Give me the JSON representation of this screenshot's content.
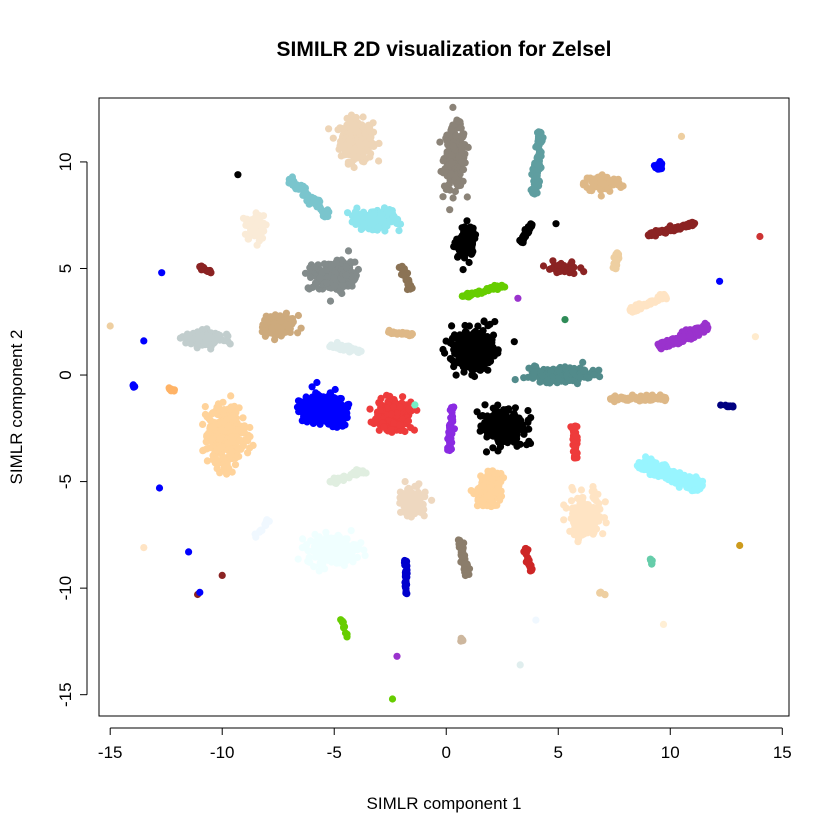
{
  "chart_data": {
    "type": "scatter",
    "title": "SIMILR 2D visualization for Zelsel",
    "xlabel": "SIMLR component 1",
    "ylabel": "SIMLR component 2",
    "xlim": [
      -15.5,
      15.3
    ],
    "ylim": [
      -16.0,
      13.0
    ],
    "xticks": [
      -15,
      -10,
      -5,
      0,
      5,
      10,
      15
    ],
    "yticks": [
      -15,
      -10,
      -5,
      0,
      5,
      10
    ],
    "grid": false,
    "legend": "none",
    "series": [
      {
        "color": "#EED5B7",
        "shape": "blob",
        "center": [
          -4.0,
          11.0
        ],
        "spread": [
          0.6,
          0.8
        ],
        "n": 260
      },
      {
        "color": "#8B8378",
        "shape": "blob",
        "center": [
          0.4,
          10.2
        ],
        "spread": [
          0.4,
          1.2
        ],
        "n": 240
      },
      {
        "color": "#5F9EA0",
        "shape": "line",
        "start": [
          4.2,
          11.4
        ],
        "end": [
          3.9,
          8.5
        ],
        "width": 0.15,
        "n": 120
      },
      {
        "color": "#DEB887",
        "shape": "blob",
        "center": [
          7.0,
          9.0
        ],
        "spread": [
          0.7,
          0.35
        ],
        "n": 90
      },
      {
        "color": "#0000FF",
        "shape": "blob",
        "center": [
          9.5,
          9.8
        ],
        "spread": [
          0.12,
          0.2
        ],
        "n": 20
      },
      {
        "color": "#EECFA1",
        "shape": "point",
        "center": [
          10.5,
          11.2
        ]
      },
      {
        "color": "#000000",
        "shape": "point",
        "center": [
          -9.3,
          9.4
        ]
      },
      {
        "color": "#7AC5CD",
        "shape": "line",
        "start": [
          -7.0,
          9.2
        ],
        "end": [
          -5.2,
          7.5
        ],
        "width": 0.15,
        "n": 90
      },
      {
        "color": "#8EE5EE",
        "shape": "blob",
        "center": [
          -3.2,
          7.3
        ],
        "spread": [
          0.9,
          0.4
        ],
        "n": 150
      },
      {
        "color": "#FAEBD7",
        "shape": "blob",
        "center": [
          -8.5,
          6.9
        ],
        "spread": [
          0.35,
          0.45
        ],
        "n": 70
      },
      {
        "color": "#000000",
        "shape": "blob",
        "center": [
          0.9,
          6.3
        ],
        "spread": [
          0.3,
          0.6
        ],
        "n": 110
      },
      {
        "color": "#000000",
        "shape": "line",
        "start": [
          3.3,
          6.2
        ],
        "end": [
          3.8,
          7.1
        ],
        "width": 0.1,
        "n": 40
      },
      {
        "color": "#000000",
        "shape": "point",
        "center": [
          4.9,
          7.1
        ]
      },
      {
        "color": "#8B2323",
        "shape": "line",
        "start": [
          9.0,
          6.6
        ],
        "end": [
          11.2,
          7.1
        ],
        "width": 0.12,
        "n": 80
      },
      {
        "color": "#CD3333",
        "shape": "point",
        "center": [
          14.0,
          6.5
        ]
      },
      {
        "color": "#8B2323",
        "shape": "blob",
        "center": [
          5.2,
          5.0
        ],
        "spread": [
          0.6,
          0.22
        ],
        "n": 50
      },
      {
        "color": "#EECFA1",
        "shape": "line",
        "start": [
          7.5,
          5.0
        ],
        "end": [
          7.7,
          5.8
        ],
        "width": 0.1,
        "n": 30
      },
      {
        "color": "#8B2323",
        "shape": "line",
        "start": [
          -11.0,
          5.1
        ],
        "end": [
          -10.5,
          4.8
        ],
        "width": 0.08,
        "n": 25
      },
      {
        "color": "#0000FF",
        "shape": "point",
        "center": [
          -12.7,
          4.8
        ]
      },
      {
        "color": "#838B8B",
        "shape": "blob",
        "center": [
          -5.0,
          4.6
        ],
        "spread": [
          0.8,
          0.6
        ],
        "n": 200
      },
      {
        "color": "#8B7355",
        "shape": "line",
        "start": [
          -2.0,
          5.1
        ],
        "end": [
          -1.6,
          4.0
        ],
        "width": 0.1,
        "n": 40
      },
      {
        "color": "#66CD00",
        "shape": "line",
        "start": [
          0.7,
          3.7
        ],
        "end": [
          2.6,
          4.2
        ],
        "width": 0.1,
        "n": 50
      },
      {
        "color": "#9A32CD",
        "shape": "point",
        "center": [
          3.2,
          3.6
        ]
      },
      {
        "color": "#0000FF",
        "shape": "point",
        "center": [
          12.2,
          4.4
        ]
      },
      {
        "color": "#FFE4C4",
        "shape": "line",
        "start": [
          8.2,
          3.0
        ],
        "end": [
          9.8,
          3.7
        ],
        "width": 0.15,
        "n": 60
      },
      {
        "color": "#2E8B57",
        "shape": "point",
        "center": [
          5.3,
          2.6
        ]
      },
      {
        "color": "#CDAA7D",
        "shape": "blob",
        "center": [
          -7.5,
          2.3
        ],
        "spread": [
          0.6,
          0.4
        ],
        "n": 120
      },
      {
        "color": "#C1CDCD",
        "shape": "blob",
        "center": [
          -10.8,
          1.7
        ],
        "spread": [
          0.7,
          0.3
        ],
        "n": 120
      },
      {
        "color": "#EECFA1",
        "shape": "point",
        "center": [
          -15.0,
          2.3
        ]
      },
      {
        "color": "#0000FF",
        "shape": "point",
        "center": [
          -13.5,
          1.6
        ]
      },
      {
        "color": "#E0EEEE",
        "shape": "line",
        "start": [
          -5.2,
          1.4
        ],
        "end": [
          -3.8,
          1.1
        ],
        "width": 0.15,
        "n": 40
      },
      {
        "color": "#DEB887",
        "shape": "line",
        "start": [
          -2.6,
          2.0
        ],
        "end": [
          -1.5,
          1.9
        ],
        "width": 0.08,
        "n": 30
      },
      {
        "color": "#000000",
        "shape": "blob",
        "center": [
          1.2,
          1.2
        ],
        "spread": [
          0.8,
          0.75
        ],
        "n": 340
      },
      {
        "color": "#9A32CD",
        "shape": "line",
        "start": [
          9.5,
          1.3
        ],
        "end": [
          11.7,
          2.3
        ],
        "width": 0.2,
        "n": 130
      },
      {
        "color": "#FFEBCD",
        "shape": "point",
        "center": [
          13.8,
          1.8
        ]
      },
      {
        "color": "#528B8B",
        "shape": "blob",
        "center": [
          5.0,
          0.0
        ],
        "spread": [
          1.3,
          0.3
        ],
        "n": 170
      },
      {
        "color": "#0000FF",
        "shape": "line",
        "start": [
          -14.0,
          -0.5
        ],
        "end": [
          -13.8,
          -0.6
        ],
        "width": 0.05,
        "n": 6
      },
      {
        "color": "#FFB366",
        "shape": "line",
        "start": [
          -12.4,
          -0.6
        ],
        "end": [
          -12.1,
          -0.8
        ],
        "width": 0.06,
        "n": 10
      },
      {
        "color": "#0000FF",
        "shape": "blob",
        "center": [
          -5.5,
          -1.6
        ],
        "spread": [
          0.8,
          0.55
        ],
        "n": 320
      },
      {
        "color": "#EE3B3B",
        "shape": "blob",
        "center": [
          -2.4,
          -1.9
        ],
        "spread": [
          0.6,
          0.55
        ],
        "n": 220
      },
      {
        "color": "#76EEC6",
        "shape": "point",
        "center": [
          -1.4,
          -1.4
        ]
      },
      {
        "color": "#8A2BE2",
        "shape": "line",
        "start": [
          0.3,
          -1.5
        ],
        "end": [
          0.1,
          -3.6
        ],
        "width": 0.1,
        "n": 40
      },
      {
        "color": "#000000",
        "shape": "blob",
        "center": [
          2.6,
          -2.5
        ],
        "spread": [
          0.7,
          0.65
        ],
        "n": 280
      },
      {
        "color": "#DEB887",
        "shape": "line",
        "start": [
          7.3,
          -1.1
        ],
        "end": [
          9.8,
          -1.1
        ],
        "width": 0.12,
        "n": 90
      },
      {
        "color": "#000080",
        "shape": "line",
        "start": [
          12.2,
          -1.4
        ],
        "end": [
          12.8,
          -1.5
        ],
        "width": 0.05,
        "n": 10
      },
      {
        "color": "#FFD39B",
        "shape": "blob",
        "center": [
          -9.8,
          -2.9
        ],
        "spread": [
          0.7,
          1.2
        ],
        "n": 320
      },
      {
        "color": "#EE3B3B",
        "shape": "line",
        "start": [
          5.7,
          -2.4
        ],
        "end": [
          5.8,
          -3.9
        ],
        "width": 0.12,
        "n": 50
      },
      {
        "color": "#98F5FF",
        "shape": "line",
        "start": [
          8.6,
          -4.1
        ],
        "end": [
          11.4,
          -5.3
        ],
        "width": 0.3,
        "n": 230
      },
      {
        "color": "#FFD39B",
        "shape": "blob",
        "center": [
          1.9,
          -5.4
        ],
        "spread": [
          0.45,
          0.6
        ],
        "n": 170
      },
      {
        "color": "#E0EEE0",
        "shape": "line",
        "start": [
          -5.2,
          -5.0
        ],
        "end": [
          -3.6,
          -4.5
        ],
        "width": 0.15,
        "n": 40
      },
      {
        "color": "#EED8C0",
        "shape": "blob",
        "center": [
          -1.5,
          -5.9
        ],
        "spread": [
          0.45,
          0.6
        ],
        "n": 120
      },
      {
        "color": "#FFE4C4",
        "shape": "blob",
        "center": [
          6.2,
          -6.6
        ],
        "spread": [
          0.6,
          0.8
        ],
        "n": 170
      },
      {
        "color": "#0000FF",
        "shape": "point",
        "center": [
          -12.8,
          -5.3
        ]
      },
      {
        "color": "#F0F8FF",
        "shape": "line",
        "start": [
          -8.6,
          -7.6
        ],
        "end": [
          -7.9,
          -6.8
        ],
        "width": 0.1,
        "n": 15
      },
      {
        "color": "#F0FFFF",
        "shape": "blob",
        "center": [
          -5.1,
          -8.2
        ],
        "spread": [
          0.9,
          0.55
        ],
        "n": 220
      },
      {
        "color": "#8B7D6B",
        "shape": "line",
        "start": [
          0.6,
          -7.7
        ],
        "end": [
          0.9,
          -9.4
        ],
        "width": 0.1,
        "n": 40
      },
      {
        "color": "#CD2626",
        "shape": "line",
        "start": [
          3.5,
          -8.1
        ],
        "end": [
          3.8,
          -9.2
        ],
        "width": 0.08,
        "n": 30
      },
      {
        "color": "#66CDAA",
        "shape": "line",
        "start": [
          9.1,
          -8.6
        ],
        "end": [
          9.2,
          -8.9
        ],
        "width": 0.06,
        "n": 8
      },
      {
        "color": "#0000CD",
        "shape": "line",
        "start": [
          -1.8,
          -8.7
        ],
        "end": [
          -1.8,
          -10.4
        ],
        "width": 0.06,
        "n": 40
      },
      {
        "color": "#FFE4C4",
        "shape": "point",
        "center": [
          -13.5,
          -8.1
        ]
      },
      {
        "color": "#0000FF",
        "shape": "point",
        "center": [
          -11.5,
          -8.3
        ]
      },
      {
        "color": "#8B2323",
        "shape": "point",
        "center": [
          -10.0,
          -9.4
        ]
      },
      {
        "color": "#CD9B1D",
        "shape": "point",
        "center": [
          13.1,
          -8.0
        ]
      },
      {
        "color": "#8B2323",
        "shape": "point",
        "center": [
          -11.1,
          -10.3
        ]
      },
      {
        "color": "#0000FF",
        "shape": "point",
        "center": [
          -11.0,
          -10.2
        ]
      },
      {
        "color": "#EECFA1",
        "shape": "line",
        "start": [
          6.8,
          -10.2
        ],
        "end": [
          7.1,
          -10.3
        ],
        "width": 0.05,
        "n": 6
      },
      {
        "color": "#66CD00",
        "shape": "line",
        "start": [
          -4.7,
          -11.4
        ],
        "end": [
          -4.4,
          -12.3
        ],
        "width": 0.06,
        "n": 12
      },
      {
        "color": "#F0F8FF",
        "shape": "point",
        "center": [
          4.0,
          -11.5
        ]
      },
      {
        "color": "#CDB79E",
        "shape": "line",
        "start": [
          0.7,
          -12.2
        ],
        "end": [
          0.7,
          -12.5
        ],
        "width": 0.05,
        "n": 5
      },
      {
        "color": "#FFEFD5",
        "shape": "point",
        "center": [
          9.7,
          -11.7
        ]
      },
      {
        "color": "#9A32CD",
        "shape": "point",
        "center": [
          -2.2,
          -13.2
        ]
      },
      {
        "color": "#E0EEEE",
        "shape": "point",
        "center": [
          3.3,
          -13.6
        ]
      },
      {
        "color": "#66CD00",
        "shape": "point",
        "center": [
          -2.4,
          -15.2
        ]
      }
    ]
  }
}
